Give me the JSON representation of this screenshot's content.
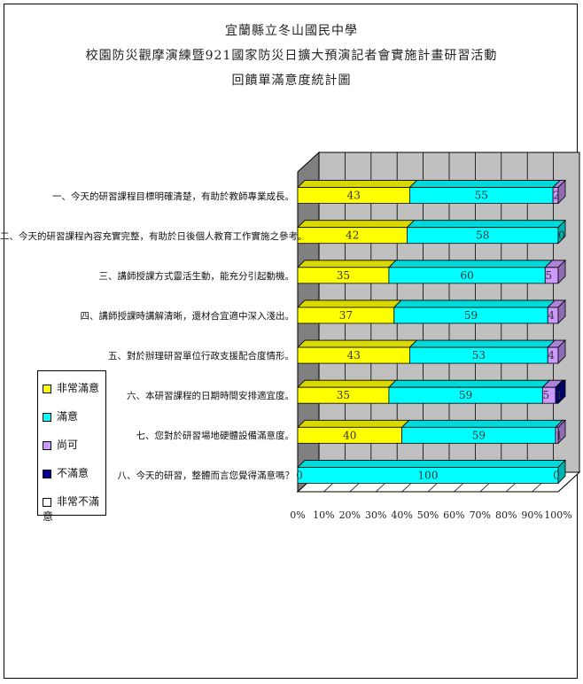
{
  "titles": {
    "line1": "宜蘭縣立冬山國民中學",
    "line2": "校園防災觀摩演練暨921國家防災日擴大預演記者會實施計畫研習活動",
    "line3": "回饋單滿意度統計圖"
  },
  "chart_data": {
    "type": "bar",
    "stacked": true,
    "orientation": "horizontal",
    "categories": [
      "一、今天的研習課程目標明確清楚，有助於教師專業成長。",
      "二、今天的研習課程內容充實完整，有助於日後個人教育工作實施之參考。",
      "三、講師授課方式靈活生動，能充分引起動機。",
      "四、講師授課時講解清晰，還材合宜適中深入淺出。",
      "五、對於辦理研習單位行政支援配合度情形。",
      "六、本研習課程的日期時間安排適宜度。",
      "七、您對於研習場地硬體設備滿意度。",
      "八、今天的研習，整體而言您覺得滿意嗎？"
    ],
    "series": [
      {
        "name": "非常滿意",
        "color": "#ffff00",
        "values": [
          43,
          42,
          35,
          37,
          43,
          35,
          40,
          0
        ]
      },
      {
        "name": "滿意",
        "color": "#00ffff",
        "values": [
          55,
          58,
          60,
          59,
          53,
          59,
          59,
          100
        ]
      },
      {
        "name": "尚可",
        "color": "#cc99ff",
        "values": [
          2,
          0,
          5,
          4,
          4,
          5,
          1,
          0
        ]
      },
      {
        "name": "不滿意",
        "color": "#000099",
        "values": [
          0,
          0,
          0,
          0,
          0,
          1,
          0,
          0
        ]
      },
      {
        "name": "非常不滿意",
        "color": "#ffffff",
        "values": [
          0,
          0,
          0,
          0,
          0,
          0,
          0,
          0
        ]
      }
    ],
    "data_labels": [
      [
        "43",
        "55",
        "2"
      ],
      [
        "42",
        "58",
        "0"
      ],
      [
        "35",
        "60",
        "5"
      ],
      [
        "37",
        "59",
        "4"
      ],
      [
        "43",
        "53",
        "4"
      ],
      [
        "35",
        "59",
        "5",
        "1"
      ],
      [
        "40",
        "59",
        "1"
      ],
      [
        "0",
        "100",
        "0"
      ]
    ],
    "xticks": [
      "0%",
      "10%",
      "20%",
      "30%",
      "40%",
      "50%",
      "60%",
      "70%",
      "80%",
      "90%",
      "100%"
    ],
    "xlim": [
      0,
      100
    ],
    "grid": true,
    "legend_position": "left"
  }
}
